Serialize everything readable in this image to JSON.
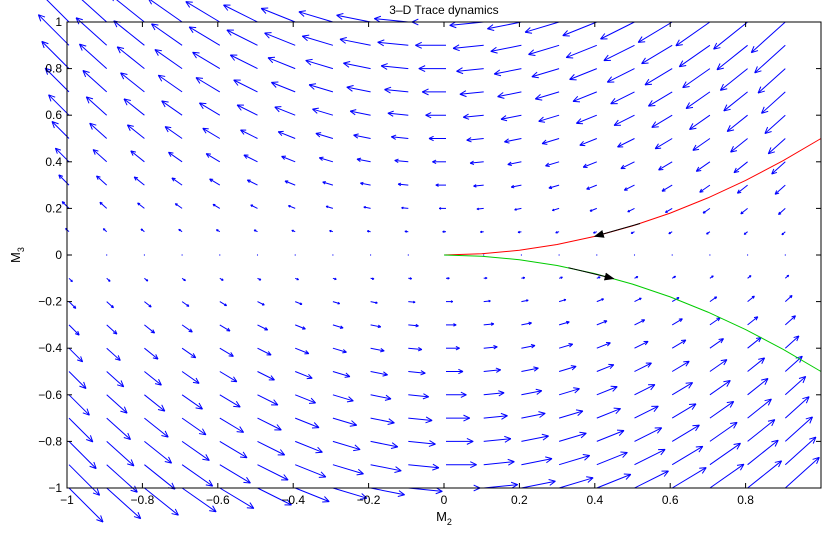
{
  "chart_data": {
    "type": "quiver",
    "title": "3–D Trace dynamics",
    "xlabel": {
      "main": "M",
      "sub": "2"
    },
    "ylabel": {
      "main": "M",
      "sub": "3"
    },
    "xlim": [
      -1,
      1
    ],
    "ylim": [
      -1,
      1
    ],
    "xticks": [
      -1,
      -0.8,
      -0.6,
      -0.4,
      -0.2,
      0,
      0.2,
      0.4,
      0.6,
      0.8
    ],
    "xtick_labels": [
      "−1",
      "−0.8",
      "−0.6",
      "−0.4",
      "−0.2",
      "0",
      "0.2",
      "0.4",
      "0.6",
      "0.8"
    ],
    "yticks": [
      1,
      0.8,
      0.6,
      0.4,
      0.2,
      0,
      -0.2,
      -0.4,
      -0.6,
      -0.8,
      -1
    ],
    "ytick_labels": [
      "1",
      "0.8",
      "0.6",
      "0.4",
      "0.2",
      "0",
      "−0.2",
      "−0.4",
      "−0.6",
      "−0.8",
      "−1"
    ],
    "grid": false,
    "vector_field": {
      "color": "#0000ff",
      "grid_x": [
        -1,
        -0.9,
        -0.8,
        -0.7,
        -0.6,
        -0.5,
        -0.4,
        -0.3,
        -0.2,
        -0.1,
        0,
        0.1,
        0.2,
        0.3,
        0.4,
        0.5,
        0.6,
        0.7,
        0.8,
        0.9
      ],
      "grid_y": [
        1,
        0.9,
        0.8,
        0.7,
        0.6,
        0.5,
        0.4,
        0.3,
        0.2,
        0.1,
        0,
        -0.1,
        -0.2,
        -0.3,
        -0.4,
        -0.5,
        -0.6,
        -0.7,
        -0.8,
        -0.9,
        -1
      ],
      "field": "u = -M3, v = -M3*M2 (arrows point left above M3=0 and right below, curving toward the center line)"
    },
    "series": [
      {
        "color": "#ff0000",
        "x": [
          0,
          0.1,
          0.2,
          0.3,
          0.4,
          0.5,
          0.6,
          0.7,
          0.8,
          0.9,
          1.0
        ],
        "y": [
          0,
          0.005,
          0.02,
          0.045,
          0.08,
          0.125,
          0.18,
          0.245,
          0.32,
          0.405,
          0.5
        ],
        "arrow": {
          "at_x": 0.4,
          "direction": "toward-origin"
        }
      },
      {
        "color": "#00cc00",
        "x": [
          0,
          0.1,
          0.2,
          0.3,
          0.4,
          0.5,
          0.6,
          0.7,
          0.8,
          0.9,
          1.0
        ],
        "y": [
          0,
          -0.005,
          -0.02,
          -0.045,
          -0.08,
          -0.125,
          -0.18,
          -0.245,
          -0.32,
          -0.405,
          -0.5
        ],
        "arrow": {
          "at_x": 0.45,
          "direction": "away-from-origin"
        }
      }
    ]
  }
}
